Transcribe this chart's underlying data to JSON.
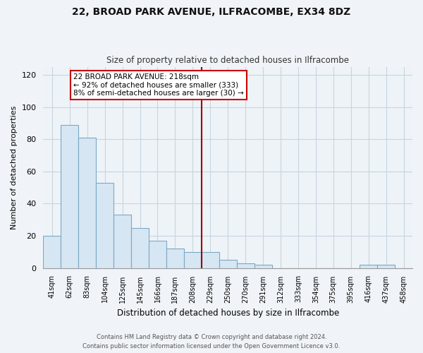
{
  "title": "22, BROAD PARK AVENUE, ILFRACOMBE, EX34 8DZ",
  "subtitle": "Size of property relative to detached houses in Ilfracombe",
  "xlabel": "Distribution of detached houses by size in Ilfracombe",
  "ylabel": "Number of detached properties",
  "bin_labels": [
    "41sqm",
    "62sqm",
    "83sqm",
    "104sqm",
    "125sqm",
    "145sqm",
    "166sqm",
    "187sqm",
    "208sqm",
    "229sqm",
    "250sqm",
    "270sqm",
    "291sqm",
    "312sqm",
    "333sqm",
    "354sqm",
    "375sqm",
    "395sqm",
    "416sqm",
    "437sqm",
    "458sqm"
  ],
  "bar_heights": [
    20,
    89,
    81,
    53,
    33,
    25,
    17,
    12,
    10,
    10,
    5,
    3,
    2,
    0,
    0,
    0,
    0,
    0,
    2,
    2,
    0
  ],
  "bar_color": "#d6e6f2",
  "bar_edge_color": "#7aaac8",
  "ylim": [
    0,
    125
  ],
  "yticks": [
    0,
    20,
    40,
    60,
    80,
    100,
    120
  ],
  "vline_x_index": 8.5,
  "annotation_title": "22 BROAD PARK AVENUE: 218sqm",
  "annotation_line1": "← 92% of detached houses are smaller (333)",
  "annotation_line2": "8% of semi-detached houses are larger (30) →",
  "footer1": "Contains HM Land Registry data © Crown copyright and database right 2024.",
  "footer2": "Contains public sector information licensed under the Open Government Licence v3.0.",
  "background_color": "#f0f4f8",
  "plot_bg_color": "#eef3f8",
  "grid_color": "#c8d4de",
  "vline_color": "#990000",
  "annotation_box_color": "#ffffff",
  "annotation_box_edge": "#cc0000"
}
